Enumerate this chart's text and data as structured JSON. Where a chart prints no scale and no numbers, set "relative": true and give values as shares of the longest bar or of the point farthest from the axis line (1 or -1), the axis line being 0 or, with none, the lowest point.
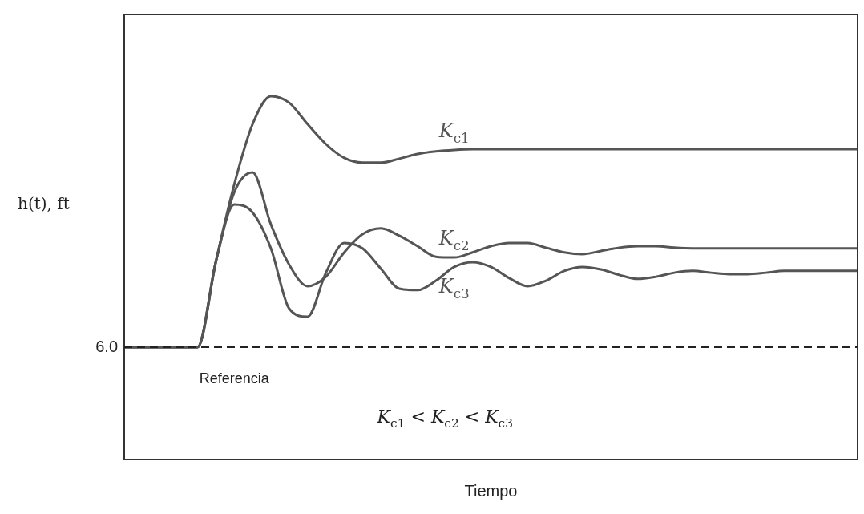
{
  "chart_data": {
    "type": "line",
    "relative": true,
    "xlabel": "Tiempo",
    "ylabel": "h(t), ft",
    "categories": [
      null,
      null,
      null,
      null,
      null,
      null,
      null,
      null,
      null,
      null,
      null,
      null,
      null,
      null,
      null,
      null,
      null,
      null,
      null,
      null,
      null,
      null,
      null,
      null,
      null,
      null,
      null,
      null,
      null,
      null,
      null,
      null,
      null,
      null,
      null,
      null,
      null,
      null,
      null,
      null,
      null
    ],
    "series": [
      {
        "name": "K$_{c1}$",
        "color": "#555555",
        "values": [
          0.309,
          0.309,
          0.309,
          0.309,
          0.309,
          0.545,
          0.757,
          0.923,
          1.0,
          0.982,
          0.923,
          0.868,
          0.83,
          0.817,
          0.817,
          0.828,
          0.841,
          0.848,
          0.852,
          0.854,
          0.854,
          0.854,
          0.854,
          0.854,
          0.854,
          0.854,
          0.854,
          0.854,
          0.854,
          0.854,
          0.854,
          0.854,
          0.854,
          0.854,
          0.854,
          0.854,
          0.854,
          0.854,
          0.854,
          0.854,
          0.854
        ]
      },
      {
        "name": "K$_{c2}$",
        "color": "#555555",
        "values": [
          0.309,
          0.309,
          0.309,
          0.309,
          0.309,
          0.545,
          0.735,
          0.79,
          0.647,
          0.536,
          0.477,
          0.503,
          0.57,
          0.62,
          0.636,
          0.616,
          0.587,
          0.558,
          0.556,
          0.57,
          0.587,
          0.596,
          0.596,
          0.583,
          0.57,
          0.565,
          0.574,
          0.583,
          0.587,
          0.587,
          0.583,
          0.581,
          0.581,
          0.581,
          0.581,
          0.581,
          0.581,
          0.581,
          0.581,
          0.581,
          0.581
        ]
      },
      {
        "name": "K$_{c3}$",
        "color": "#555555",
        "values": [
          0.309,
          0.309,
          0.309,
          0.309,
          0.309,
          0.545,
          0.702,
          0.68,
          0.581,
          0.415,
          0.393,
          0.514,
          0.596,
          0.581,
          0.525,
          0.47,
          0.466,
          0.492,
          0.53,
          0.543,
          0.53,
          0.499,
          0.477,
          0.492,
          0.519,
          0.53,
          0.523,
          0.508,
          0.497,
          0.503,
          0.514,
          0.519,
          0.514,
          0.51,
          0.51,
          0.514,
          0.519,
          0.519,
          0.519,
          0.519,
          0.519
        ]
      }
    ],
    "ref_lines": [
      {
        "axis": "y",
        "value": 0.309,
        "color": "#222222",
        "line_style": "dashed"
      }
    ],
    "annotations": [
      "Referencia",
      "K$_{c1}$ < K$_{c2}$ < K$_{c3}$",
      "6.0"
    ],
    "legend": false,
    "grid": false,
    "tick_labels": false,
    "marker": "none",
    "line_style": "solid"
  }
}
